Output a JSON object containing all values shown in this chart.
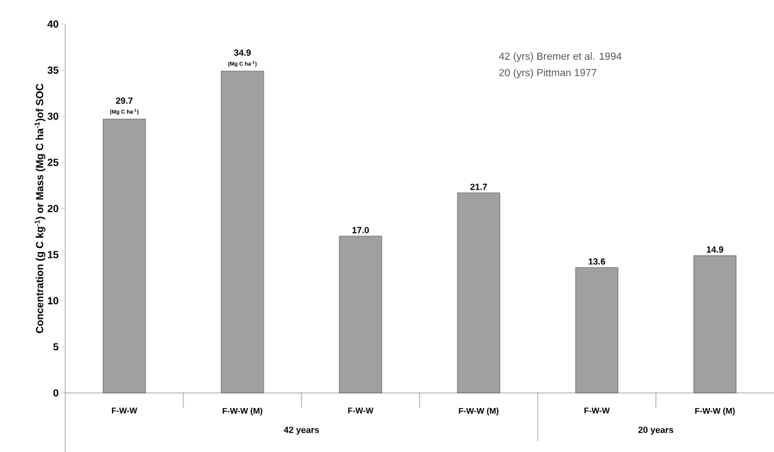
{
  "chart_data": {
    "type": "bar",
    "ylabel": "Concentration (g C kg$^{-1}$) or Mass (Mg C ha$^{-1}$)of SOC",
    "categories": [
      "F-W-W",
      "F-W-W (M)",
      "F-W-W",
      "F-W-W (M)",
      "F-W-W",
      "F-W-W (M)"
    ],
    "values": [
      29.7,
      34.9,
      17.0,
      21.7,
      13.6,
      14.9
    ],
    "value_labels": [
      "29.7",
      "34.9",
      "17.0",
      "21.7",
      "13.6",
      "14.9"
    ],
    "color": "#a0a0a0",
    "ylim": [
      0,
      40
    ],
    "yticks": [
      0,
      5,
      10,
      15,
      20,
      25,
      30,
      35,
      40
    ],
    "grid": false,
    "annotations": [
      "42 (yrs) Bremer et al. 1994",
      "20 (yrs) Pittman 1977",
      "42 years",
      "20 years",
      "(Mg C ha$^{-1}$)",
      "(Mg C ha$^{-1}$)"
    ]
  }
}
